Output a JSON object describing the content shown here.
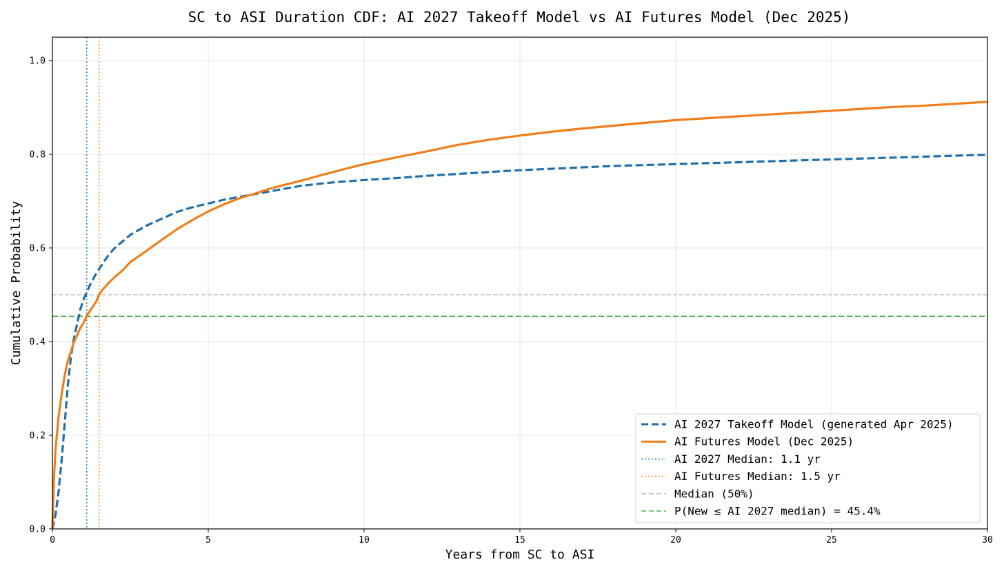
{
  "chart_data": {
    "type": "line",
    "title": "SC to ASI Duration CDF: AI 2027 Takeoff Model vs AI Futures Model (Dec 2025)",
    "xlabel": "Years from SC to ASI",
    "ylabel": "Cumulative Probability",
    "xlim": [
      0,
      30
    ],
    "ylim": [
      0,
      1.05
    ],
    "xticks": [
      0,
      5,
      10,
      15,
      20,
      25,
      30
    ],
    "xtick_labels": [
      "0",
      "5",
      "10",
      "15",
      "20",
      "25",
      "30"
    ],
    "yticks": [
      0,
      0.2,
      0.4,
      0.6,
      0.8,
      1.0
    ],
    "ytick_labels": [
      "0.0",
      "0.2",
      "0.4",
      "0.6",
      "0.8",
      "1.0"
    ],
    "grid": true,
    "legend_position": "lower-right",
    "series": [
      {
        "name": "AI 2027 Takeoff Model (generated Apr 2025)",
        "style": "dashed",
        "color": "#1f6fab",
        "x": [
          0,
          0.1,
          0.2,
          0.3,
          0.4,
          0.5,
          0.6,
          0.7,
          0.8,
          0.9,
          1.0,
          1.1,
          1.2,
          1.4,
          1.6,
          1.8,
          2.0,
          2.5,
          3.0,
          3.5,
          4.0,
          4.5,
          5.0,
          5.5,
          6.0,
          6.5,
          7.0,
          8.0,
          9.0,
          10.0,
          11.0,
          12.0,
          13.0,
          14.0,
          15.0,
          16.0,
          17.0,
          18.0,
          19.0,
          20.0,
          21.0,
          22.0,
          23.0,
          24.0,
          25.0,
          26.0,
          27.0,
          28.0,
          29.0,
          30.0
        ],
        "y": [
          0,
          0.03,
          0.08,
          0.15,
          0.23,
          0.31,
          0.37,
          0.41,
          0.44,
          0.47,
          0.49,
          0.505,
          0.52,
          0.545,
          0.565,
          0.585,
          0.6,
          0.628,
          0.647,
          0.662,
          0.677,
          0.687,
          0.695,
          0.703,
          0.709,
          0.715,
          0.721,
          0.733,
          0.74,
          0.745,
          0.749,
          0.754,
          0.758,
          0.762,
          0.766,
          0.769,
          0.772,
          0.775,
          0.777,
          0.779,
          0.781,
          0.783,
          0.785,
          0.787,
          0.789,
          0.791,
          0.793,
          0.795,
          0.797,
          0.799
        ]
      },
      {
        "name": "AI Futures Model (Dec 2025)",
        "style": "solid",
        "color": "#f07f1b",
        "x": [
          0,
          0.05,
          0.1,
          0.2,
          0.3,
          0.4,
          0.5,
          0.6,
          0.7,
          0.8,
          0.9,
          1.0,
          1.1,
          1.2,
          1.3,
          1.4,
          1.5,
          1.6,
          1.8,
          2.0,
          2.25,
          2.5,
          3.0,
          3.5,
          4.0,
          4.5,
          5.0,
          5.5,
          6.0,
          6.5,
          7.0,
          8.0,
          9.0,
          10.0,
          11.0,
          12.0,
          13.0,
          14.0,
          15.0,
          16.0,
          17.0,
          18.0,
          19.0,
          20.0,
          21.0,
          22.0,
          23.0,
          24.0,
          25.0,
          26.0,
          27.0,
          28.0,
          29.0,
          30.0
        ],
        "y": [
          0,
          0.11,
          0.17,
          0.24,
          0.29,
          0.33,
          0.36,
          0.38,
          0.4,
          0.415,
          0.43,
          0.44,
          0.455,
          0.465,
          0.475,
          0.485,
          0.5,
          0.51,
          0.525,
          0.538,
          0.552,
          0.57,
          0.593,
          0.617,
          0.64,
          0.66,
          0.678,
          0.693,
          0.706,
          0.716,
          0.727,
          0.744,
          0.762,
          0.779,
          0.793,
          0.806,
          0.82,
          0.831,
          0.84,
          0.848,
          0.855,
          0.861,
          0.867,
          0.873,
          0.877,
          0.881,
          0.885,
          0.889,
          0.893,
          0.897,
          0.901,
          0.904,
          0.908,
          0.912
        ]
      }
    ],
    "reference_lines": [
      {
        "name": "AI 2027 Median: 1.1 yr",
        "orientation": "vertical",
        "value": 1.1,
        "style": "dotted",
        "color": "#2a84c6"
      },
      {
        "name": "AI Futures Median: 1.5 yr",
        "orientation": "vertical",
        "value": 1.5,
        "style": "dotted",
        "color": "#f5913b"
      },
      {
        "name": "Median (50%)",
        "orientation": "horizontal",
        "value": 0.5,
        "style": "dashed",
        "color": "#c0c0c0"
      },
      {
        "name": "P(New ≤ AI 2027 median) = 45.4%",
        "orientation": "horizontal",
        "value": 0.454,
        "style": "dashed",
        "color": "#4caf50"
      }
    ]
  }
}
